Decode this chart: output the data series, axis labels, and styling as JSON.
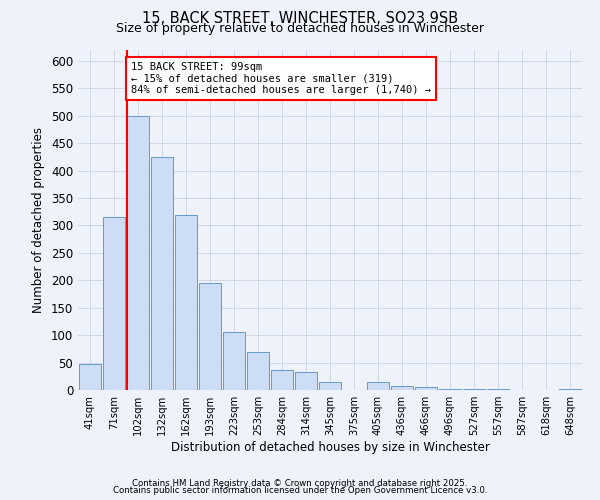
{
  "title": "15, BACK STREET, WINCHESTER, SO23 9SB",
  "subtitle": "Size of property relative to detached houses in Winchester",
  "xlabel": "Distribution of detached houses by size in Winchester",
  "ylabel": "Number of detached properties",
  "bar_color": "#ccddf5",
  "bar_edge_color": "#6699cc",
  "categories": [
    "41sqm",
    "71sqm",
    "102sqm",
    "132sqm",
    "162sqm",
    "193sqm",
    "223sqm",
    "253sqm",
    "284sqm",
    "314sqm",
    "345sqm",
    "375sqm",
    "405sqm",
    "436sqm",
    "466sqm",
    "496sqm",
    "527sqm",
    "557sqm",
    "587sqm",
    "618sqm",
    "648sqm"
  ],
  "values": [
    47,
    315,
    500,
    425,
    320,
    195,
    105,
    70,
    36,
    33,
    14,
    0,
    14,
    8,
    5,
    2,
    1,
    1,
    0,
    0,
    2
  ],
  "ylim": [
    0,
    620
  ],
  "yticks": [
    0,
    50,
    100,
    150,
    200,
    250,
    300,
    350,
    400,
    450,
    500,
    550,
    600
  ],
  "red_line_index": 2,
  "annotation_title": "15 BACK STREET: 99sqm",
  "annotation_line1": "← 15% of detached houses are smaller (319)",
  "annotation_line2": "84% of semi-detached houses are larger (1,740) →",
  "footer1": "Contains HM Land Registry data © Crown copyright and database right 2025.",
  "footer2": "Contains public sector information licensed under the Open Government Licence v3.0.",
  "background_color": "#eef2fb",
  "grid_color": "#d0d8e8"
}
